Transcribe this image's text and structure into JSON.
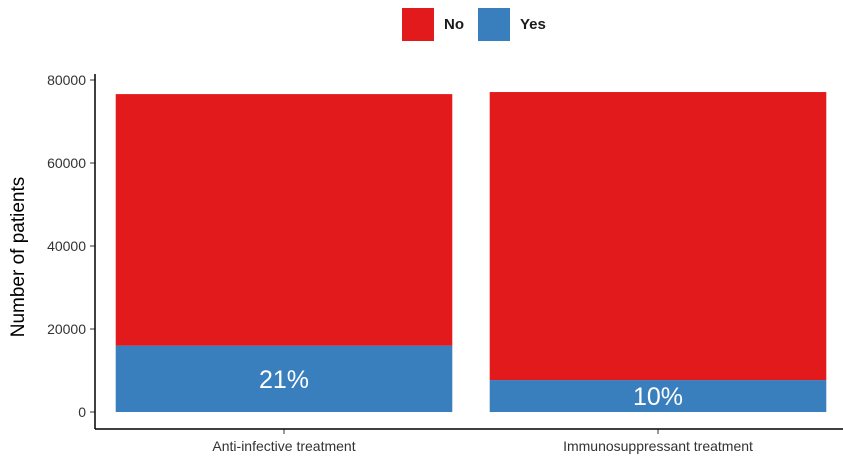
{
  "legend": {
    "items": [
      {
        "label": "No",
        "color": "#e31a1c"
      },
      {
        "label": "Yes",
        "color": "#3a7fbd"
      }
    ]
  },
  "chart_data": {
    "type": "bar",
    "stacked": true,
    "categories": [
      "Anti-infective treatment",
      "Immunosuppressant treatment"
    ],
    "series": [
      {
        "name": "Yes",
        "color": "#3a7fbd",
        "values": [
          16000,
          7700
        ]
      },
      {
        "name": "No",
        "color": "#e31a1c",
        "values": [
          60600,
          69400
        ]
      }
    ],
    "bar_labels": [
      "21%",
      "10%"
    ],
    "title": "",
    "xlabel": "",
    "ylabel": "Number of patients",
    "ylim": [
      0,
      80000
    ],
    "yticks": [
      0,
      20000,
      40000,
      60000,
      80000
    ],
    "grid": false,
    "legend_position": "top"
  }
}
